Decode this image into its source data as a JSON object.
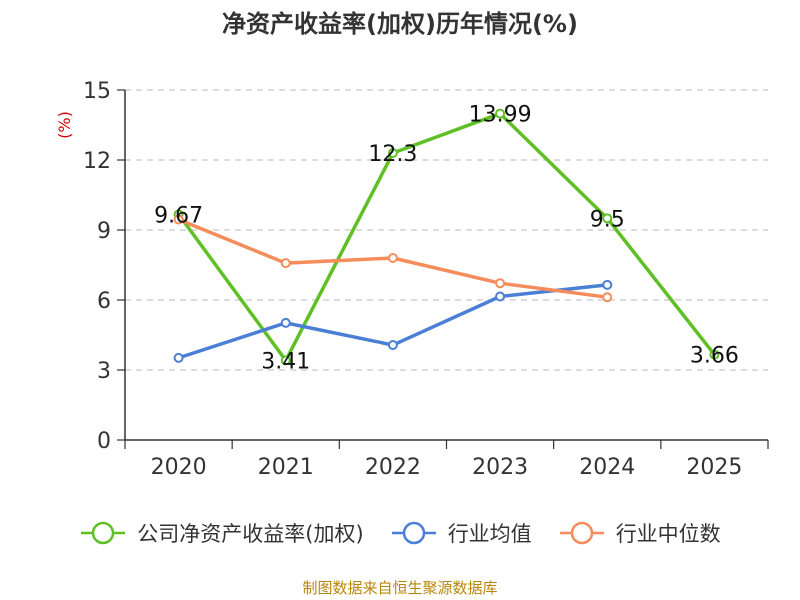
{
  "chart_data": {
    "type": "line",
    "title": "净资产收益率(加权)历年情况(%)",
    "ylabel": "(%)",
    "xlabel": "",
    "categories": [
      "2020",
      "2021",
      "2022",
      "2023",
      "2024",
      "2025"
    ],
    "ylim": [
      0,
      15
    ],
    "yticks": [
      0,
      3,
      6,
      9,
      12,
      15
    ],
    "grid": true,
    "legend_position": "bottom",
    "series": [
      {
        "name": "公司净资产收益率(加权)",
        "color": "#5ec025",
        "values": [
          9.67,
          3.41,
          12.3,
          13.99,
          9.5,
          3.66
        ],
        "labels": [
          "9.67",
          "3.41",
          "12.3",
          "13.99",
          "9.5",
          "3.66"
        ]
      },
      {
        "name": "行业均值",
        "color": "#4b7fd6",
        "values": [
          3.52,
          5.02,
          4.07,
          6.15,
          6.65,
          null
        ]
      },
      {
        "name": "行业中位数",
        "color": "#f58c5b",
        "values": [
          9.45,
          7.58,
          7.8,
          6.72,
          6.12,
          null
        ]
      }
    ]
  },
  "source_text": "制图数据来自恒生聚源数据库"
}
